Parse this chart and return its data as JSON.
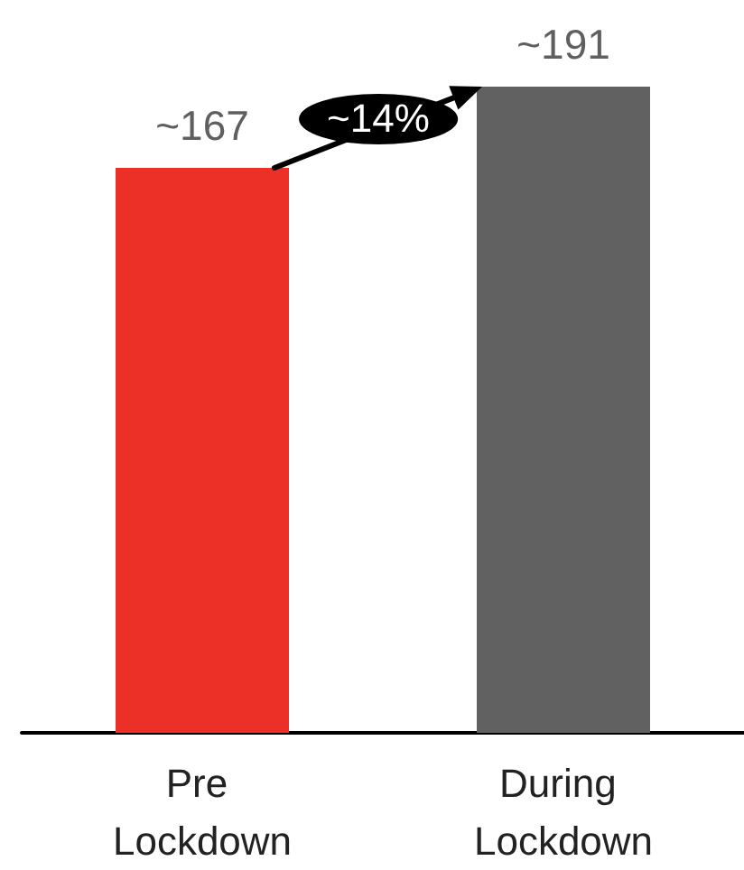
{
  "chart_data": {
    "type": "bar",
    "categories": [
      "Pre Lockdown",
      "During Lockdown"
    ],
    "values": [
      167,
      191
    ],
    "colors": [
      "#ec3027",
      "#616161"
    ],
    "value_labels": [
      "~167",
      "~191"
    ],
    "tick_labels": "x",
    "annotations": [
      "~14%"
    ]
  }
}
